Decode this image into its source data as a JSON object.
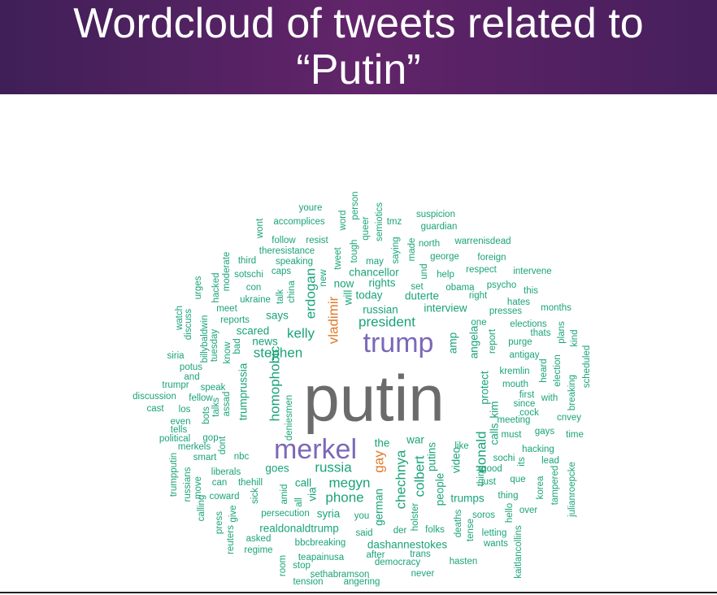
{
  "slide": {
    "title_line1": "Wordcloud of tweets related to",
    "title_line2": "“Putin”"
  },
  "colors": {
    "banner_start": "#3f1f57",
    "banner_end": "#62246a",
    "word_green": "#1aa37a",
    "word_gray": "#6b6b6b",
    "word_purple": "#7b68b8",
    "word_orange": "#e07a2c"
  },
  "wordcloud": {
    "words": [
      {
        "text": "putin",
        "tier": "largest",
        "color": "gray"
      },
      {
        "text": "trump",
        "tier": "large",
        "color": "purple"
      },
      {
        "text": "merkel",
        "tier": "large",
        "color": "purple"
      },
      {
        "text": "vladimir",
        "tier": "medium",
        "color": "orange"
      },
      {
        "text": "gay",
        "tier": "medium",
        "color": "orange"
      },
      {
        "text": "homophobic",
        "tier": "medium",
        "color": "green"
      },
      {
        "text": "chechnya",
        "tier": "medium",
        "color": "green"
      },
      {
        "text": "russia",
        "tier": "medium",
        "color": "green"
      },
      {
        "text": "president",
        "tier": "medium",
        "color": "green"
      },
      {
        "text": "stephen",
        "tier": "medium",
        "color": "green"
      },
      {
        "text": "kelly",
        "tier": "medium",
        "color": "green"
      },
      {
        "text": "erdogan",
        "tier": "medium",
        "color": "green"
      },
      {
        "text": "colbert",
        "tier": "medium",
        "color": "green"
      },
      {
        "text": "megyn",
        "tier": "medium",
        "color": "green"
      },
      {
        "text": "phone",
        "tier": "medium",
        "color": "green"
      },
      {
        "text": "donald",
        "tier": "medium",
        "color": "green"
      },
      {
        "text": "russian",
        "tier": "small",
        "color": "green"
      },
      {
        "text": "interview",
        "tier": "small",
        "color": "green"
      },
      {
        "text": "angela",
        "tier": "small",
        "color": "green"
      },
      {
        "text": "protect",
        "tier": "small",
        "color": "green"
      },
      {
        "text": "putins",
        "tier": "small",
        "color": "green"
      },
      {
        "text": "video",
        "tier": "small",
        "color": "green"
      },
      {
        "text": "amp",
        "tier": "small",
        "color": "green"
      },
      {
        "text": "today",
        "tier": "small",
        "color": "green"
      },
      {
        "text": "duterte",
        "tier": "small",
        "color": "green"
      },
      {
        "text": "rights",
        "tier": "small",
        "color": "green"
      },
      {
        "text": "chancellor",
        "tier": "small",
        "color": "green"
      },
      {
        "text": "now",
        "tier": "small",
        "color": "green"
      },
      {
        "text": "says",
        "tier": "small",
        "color": "green"
      },
      {
        "text": "goes",
        "tier": "small",
        "color": "green"
      },
      {
        "text": "the",
        "tier": "small",
        "color": "green"
      },
      {
        "text": "war",
        "tier": "small",
        "color": "green"
      },
      {
        "text": "syria",
        "tier": "small",
        "color": "green"
      },
      {
        "text": "trumps",
        "tier": "small",
        "color": "green"
      },
      {
        "text": "call",
        "tier": "small",
        "color": "green"
      },
      {
        "text": "via",
        "tier": "small",
        "color": "green"
      },
      {
        "text": "calls",
        "tier": "small",
        "color": "green"
      },
      {
        "text": "kim",
        "tier": "small",
        "color": "green"
      },
      {
        "text": "people",
        "tier": "small",
        "color": "green"
      },
      {
        "text": "will",
        "tier": "small",
        "color": "green"
      },
      {
        "text": "news",
        "tier": "small",
        "color": "green"
      },
      {
        "text": "scared",
        "tier": "small",
        "color": "green"
      },
      {
        "text": "trumprussia",
        "tier": "small",
        "color": "green"
      },
      {
        "text": "german",
        "tier": "small",
        "color": "green"
      },
      {
        "text": "realdonaldtrump",
        "tier": "small",
        "color": "green"
      },
      {
        "text": "dashannestokes",
        "tier": "small",
        "color": "green"
      },
      {
        "text": "youre",
        "tier": "tiny",
        "color": "green"
      },
      {
        "text": "accomplices",
        "tier": "tiny",
        "color": "green"
      },
      {
        "text": "follow",
        "tier": "tiny",
        "color": "green"
      },
      {
        "text": "resist",
        "tier": "tiny",
        "color": "green"
      },
      {
        "text": "theresistance",
        "tier": "tiny",
        "color": "green"
      },
      {
        "text": "third",
        "tier": "tiny",
        "color": "green"
      },
      {
        "text": "speaking",
        "tier": "tiny",
        "color": "green"
      },
      {
        "text": "caps",
        "tier": "tiny",
        "color": "green"
      },
      {
        "text": "sotschi",
        "tier": "tiny",
        "color": "green"
      },
      {
        "text": "con",
        "tier": "tiny",
        "color": "green"
      },
      {
        "text": "ukraine",
        "tier": "tiny",
        "color": "green"
      },
      {
        "text": "meet",
        "tier": "tiny",
        "color": "green"
      },
      {
        "text": "reports",
        "tier": "tiny",
        "color": "green"
      },
      {
        "text": "wont",
        "tier": "tiny",
        "color": "green"
      },
      {
        "text": "word",
        "tier": "tiny",
        "color": "green"
      },
      {
        "text": "person",
        "tier": "tiny",
        "color": "green"
      },
      {
        "text": "queer",
        "tier": "tiny",
        "color": "green"
      },
      {
        "text": "semiotics",
        "tier": "tiny",
        "color": "green"
      },
      {
        "text": "tmz",
        "tier": "tiny",
        "color": "green"
      },
      {
        "text": "suspicion",
        "tier": "tiny",
        "color": "green"
      },
      {
        "text": "guardian",
        "tier": "tiny",
        "color": "green"
      },
      {
        "text": "north",
        "tier": "tiny",
        "color": "green"
      },
      {
        "text": "warrenisdead",
        "tier": "tiny",
        "color": "green"
      },
      {
        "text": "george",
        "tier": "tiny",
        "color": "green"
      },
      {
        "text": "foreign",
        "tier": "tiny",
        "color": "green"
      },
      {
        "text": "made",
        "tier": "tiny",
        "color": "green"
      },
      {
        "text": "saying",
        "tier": "tiny",
        "color": "green"
      },
      {
        "text": "tough",
        "tier": "tiny",
        "color": "green"
      },
      {
        "text": "tweet",
        "tier": "tiny",
        "color": "green"
      },
      {
        "text": "may",
        "tier": "tiny",
        "color": "green"
      },
      {
        "text": "und",
        "tier": "tiny",
        "color": "green"
      },
      {
        "text": "help",
        "tier": "tiny",
        "color": "green"
      },
      {
        "text": "respect",
        "tier": "tiny",
        "color": "green"
      },
      {
        "text": "intervene",
        "tier": "tiny",
        "color": "green"
      },
      {
        "text": "obama",
        "tier": "tiny",
        "color": "green"
      },
      {
        "text": "psycho",
        "tier": "tiny",
        "color": "green"
      },
      {
        "text": "this",
        "tier": "tiny",
        "color": "green"
      },
      {
        "text": "set",
        "tier": "tiny",
        "color": "green"
      },
      {
        "text": "right",
        "tier": "tiny",
        "color": "green"
      },
      {
        "text": "hates",
        "tier": "tiny",
        "color": "green"
      },
      {
        "text": "months",
        "tier": "tiny",
        "color": "green"
      },
      {
        "text": "presses",
        "tier": "tiny",
        "color": "green"
      },
      {
        "text": "one",
        "tier": "tiny",
        "color": "green"
      },
      {
        "text": "elections",
        "tier": "tiny",
        "color": "green"
      },
      {
        "text": "thats",
        "tier": "tiny",
        "color": "green"
      },
      {
        "text": "report",
        "tier": "tiny",
        "color": "green"
      },
      {
        "text": "purge",
        "tier": "tiny",
        "color": "green"
      },
      {
        "text": "antigay",
        "tier": "tiny",
        "color": "green"
      },
      {
        "text": "plans",
        "tier": "tiny",
        "color": "green"
      },
      {
        "text": "kind",
        "tier": "tiny",
        "color": "green"
      },
      {
        "text": "heard",
        "tier": "tiny",
        "color": "green"
      },
      {
        "text": "election",
        "tier": "tiny",
        "color": "green"
      },
      {
        "text": "scheduled",
        "tier": "tiny",
        "color": "green"
      },
      {
        "text": "kremlin",
        "tier": "tiny",
        "color": "green"
      },
      {
        "text": "mouth",
        "tier": "tiny",
        "color": "green"
      },
      {
        "text": "first",
        "tier": "tiny",
        "color": "green"
      },
      {
        "text": "with",
        "tier": "tiny",
        "color": "green"
      },
      {
        "text": "since",
        "tier": "tiny",
        "color": "green"
      },
      {
        "text": "breaking",
        "tier": "tiny",
        "color": "green"
      },
      {
        "text": "cock",
        "tier": "tiny",
        "color": "green"
      },
      {
        "text": "meeting",
        "tier": "tiny",
        "color": "green"
      },
      {
        "text": "cnvey",
        "tier": "tiny",
        "color": "green"
      },
      {
        "text": "must",
        "tier": "tiny",
        "color": "green"
      },
      {
        "text": "gays",
        "tier": "tiny",
        "color": "green"
      },
      {
        "text": "time",
        "tier": "tiny",
        "color": "green"
      },
      {
        "text": "hacking",
        "tier": "tiny",
        "color": "green"
      },
      {
        "text": "lead",
        "tier": "tiny",
        "color": "green"
      },
      {
        "text": "like",
        "tier": "tiny",
        "color": "green"
      },
      {
        "text": "sochi",
        "tier": "tiny",
        "color": "green"
      },
      {
        "text": "its",
        "tier": "tiny",
        "color": "green"
      },
      {
        "text": "good",
        "tier": "tiny",
        "color": "green"
      },
      {
        "text": "think",
        "tier": "tiny",
        "color": "green"
      },
      {
        "text": "just",
        "tier": "tiny",
        "color": "green"
      },
      {
        "text": "que",
        "tier": "tiny",
        "color": "green"
      },
      {
        "text": "thing",
        "tier": "tiny",
        "color": "green"
      },
      {
        "text": "korea",
        "tier": "tiny",
        "color": "green"
      },
      {
        "text": "tampered",
        "tier": "tiny",
        "color": "green"
      },
      {
        "text": "julianroepcke",
        "tier": "tiny",
        "color": "green"
      },
      {
        "text": "soros",
        "tier": "tiny",
        "color": "green"
      },
      {
        "text": "hello",
        "tier": "tiny",
        "color": "green"
      },
      {
        "text": "over",
        "tier": "tiny",
        "color": "green"
      },
      {
        "text": "deaths",
        "tier": "tiny",
        "color": "green"
      },
      {
        "text": "tense",
        "tier": "tiny",
        "color": "green"
      },
      {
        "text": "letting",
        "tier": "tiny",
        "color": "green"
      },
      {
        "text": "wants",
        "tier": "tiny",
        "color": "green"
      },
      {
        "text": "kaitlancollins",
        "tier": "tiny",
        "color": "green"
      },
      {
        "text": "hasten",
        "tier": "tiny",
        "color": "green"
      },
      {
        "text": "never",
        "tier": "tiny",
        "color": "green"
      },
      {
        "text": "folks",
        "tier": "tiny",
        "color": "green"
      },
      {
        "text": "holster",
        "tier": "tiny",
        "color": "green"
      },
      {
        "text": "der",
        "tier": "tiny",
        "color": "green"
      },
      {
        "text": "said",
        "tier": "tiny",
        "color": "green"
      },
      {
        "text": "trans",
        "tier": "tiny",
        "color": "green"
      },
      {
        "text": "after",
        "tier": "tiny",
        "color": "green"
      },
      {
        "text": "democracy",
        "tier": "tiny",
        "color": "green"
      },
      {
        "text": "sethabramson",
        "tier": "tiny",
        "color": "green"
      },
      {
        "text": "angering",
        "tier": "tiny",
        "color": "green"
      },
      {
        "text": "tension",
        "tier": "tiny",
        "color": "green"
      },
      {
        "text": "stop",
        "tier": "tiny",
        "color": "green"
      },
      {
        "text": "room",
        "tier": "tiny",
        "color": "green"
      },
      {
        "text": "teapainusa",
        "tier": "tiny",
        "color": "green"
      },
      {
        "text": "bbcbreaking",
        "tier": "tiny",
        "color": "green"
      },
      {
        "text": "regime",
        "tier": "tiny",
        "color": "green"
      },
      {
        "text": "asked",
        "tier": "tiny",
        "color": "green"
      },
      {
        "text": "reuters",
        "tier": "tiny",
        "color": "green"
      },
      {
        "text": "press",
        "tier": "tiny",
        "color": "green"
      },
      {
        "text": "give",
        "tier": "tiny",
        "color": "green"
      },
      {
        "text": "persecution",
        "tier": "tiny",
        "color": "green"
      },
      {
        "text": "you",
        "tier": "tiny",
        "color": "green"
      },
      {
        "text": "all",
        "tier": "tiny",
        "color": "green"
      },
      {
        "text": "amid",
        "tier": "tiny",
        "color": "green"
      },
      {
        "text": "sick",
        "tier": "tiny",
        "color": "green"
      },
      {
        "text": "coward",
        "tier": "tiny",
        "color": "green"
      },
      {
        "text": "can",
        "tier": "tiny",
        "color": "green"
      },
      {
        "text": "thehill",
        "tier": "tiny",
        "color": "green"
      },
      {
        "text": "liberals",
        "tier": "tiny",
        "color": "green"
      },
      {
        "text": "nbc",
        "tier": "tiny",
        "color": "green"
      },
      {
        "text": "dont",
        "tier": "tiny",
        "color": "green"
      },
      {
        "text": "gop",
        "tier": "tiny",
        "color": "green"
      },
      {
        "text": "smart",
        "tier": "tiny",
        "color": "green"
      },
      {
        "text": "merkels",
        "tier": "tiny",
        "color": "green"
      },
      {
        "text": "political",
        "tier": "tiny",
        "color": "green"
      },
      {
        "text": "tells",
        "tier": "tiny",
        "color": "green"
      },
      {
        "text": "even",
        "tier": "tiny",
        "color": "green"
      },
      {
        "text": "cast",
        "tier": "tiny",
        "color": "green"
      },
      {
        "text": "los",
        "tier": "tiny",
        "color": "green"
      },
      {
        "text": "discussion",
        "tier": "tiny",
        "color": "green"
      },
      {
        "text": "fellow",
        "tier": "tiny",
        "color": "green"
      },
      {
        "text": "trumpr",
        "tier": "tiny",
        "color": "green"
      },
      {
        "text": "and",
        "tier": "tiny",
        "color": "green"
      },
      {
        "text": "potus",
        "tier": "tiny",
        "color": "green"
      },
      {
        "text": "speak",
        "tier": "tiny",
        "color": "green"
      },
      {
        "text": "siria",
        "tier": "tiny",
        "color": "green"
      },
      {
        "text": "watch",
        "tier": "tiny",
        "color": "green"
      },
      {
        "text": "discuss",
        "tier": "tiny",
        "color": "green"
      },
      {
        "text": "billybaldwin",
        "tier": "tiny",
        "color": "green"
      },
      {
        "text": "urges",
        "tier": "tiny",
        "color": "green"
      },
      {
        "text": "tuesday",
        "tier": "tiny",
        "color": "green"
      },
      {
        "text": "hacked",
        "tier": "tiny",
        "color": "green"
      },
      {
        "text": "moderate",
        "tier": "tiny",
        "color": "green"
      },
      {
        "text": "know",
        "tier": "tiny",
        "color": "green"
      },
      {
        "text": "bad",
        "tier": "tiny",
        "color": "green"
      },
      {
        "text": "bots",
        "tier": "tiny",
        "color": "green"
      },
      {
        "text": "talks",
        "tier": "tiny",
        "color": "green"
      },
      {
        "text": "assad",
        "tier": "tiny",
        "color": "green"
      },
      {
        "text": "deniesmen",
        "tier": "tiny",
        "color": "green"
      },
      {
        "text": "talk",
        "tier": "tiny",
        "color": "green"
      },
      {
        "text": "china",
        "tier": "tiny",
        "color": "green"
      },
      {
        "text": "new",
        "tier": "tiny",
        "color": "green"
      },
      {
        "text": "trumpputin",
        "tier": "tiny",
        "color": "green"
      },
      {
        "text": "russians",
        "tier": "tiny",
        "color": "green"
      },
      {
        "text": "move",
        "tier": "tiny",
        "color": "green"
      },
      {
        "text": "calling",
        "tier": "tiny",
        "color": "green"
      }
    ]
  }
}
